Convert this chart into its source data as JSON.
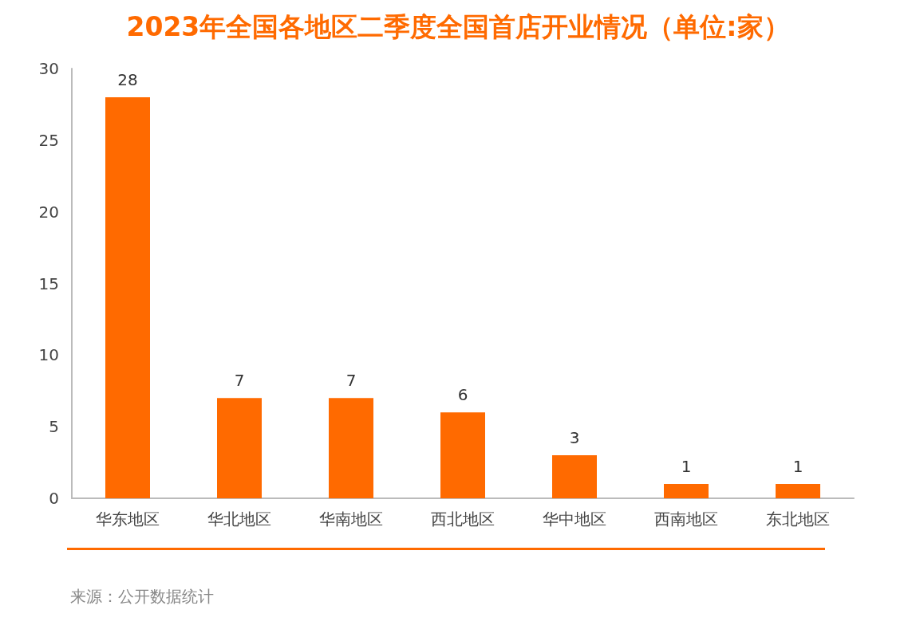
{
  "chart_data": {
    "type": "bar",
    "title": "2023年全国各地区二季度全国首店开业情况（单位:家）",
    "categories": [
      "华东地区",
      "华北地区",
      "华南地区",
      "西北地区",
      "华中地区",
      "西南地区",
      "东北地区"
    ],
    "values": [
      28,
      7,
      7,
      6,
      3,
      1,
      1
    ],
    "color": "#ff6a00",
    "ylim": [
      0,
      30
    ],
    "yticks": [
      0,
      5,
      10,
      15,
      20,
      25,
      30
    ],
    "grid": false,
    "data_labels": true,
    "annotations": [
      "来源：公开数据统计"
    ]
  }
}
